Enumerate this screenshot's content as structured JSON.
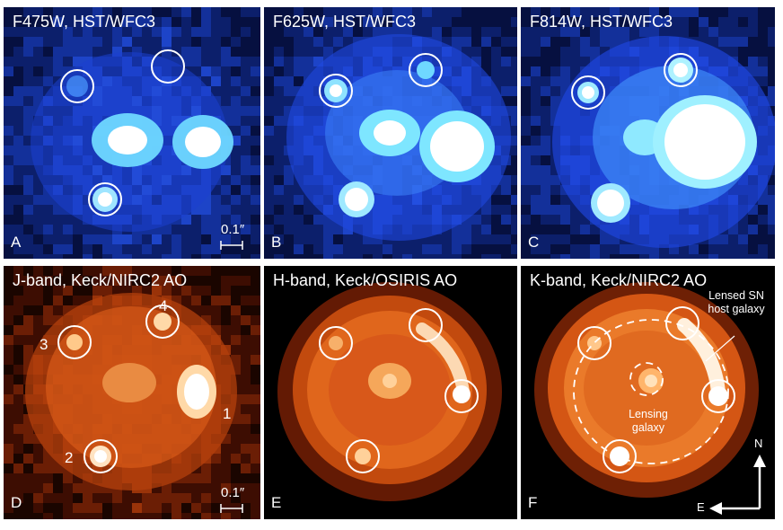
{
  "figure": {
    "panels": [
      {
        "letter": "A",
        "title": "F475W, HST/WFC3",
        "palette": "blue",
        "circles": [
          0,
          1,
          3
        ],
        "scale_label": "0.1″"
      },
      {
        "letter": "B",
        "title": "F625W, HST/WFC3",
        "palette": "blue",
        "circles": [
          0,
          1,
          3
        ]
      },
      {
        "letter": "C",
        "title": "F814W, HST/WFC3",
        "palette": "blue",
        "circles": [
          0,
          1
        ]
      },
      {
        "letter": "D",
        "title": "J-band, Keck/NIRC2 AO",
        "palette": "orange",
        "image_labels": [
          "3",
          "4",
          "1",
          "2"
        ],
        "scale_label": "0.1″"
      },
      {
        "letter": "E",
        "title": "H-band, Keck/OSIRIS AO",
        "palette": "orange"
      },
      {
        "letter": "F",
        "title": "K-band, Keck/NIRC2 AO",
        "palette": "orange",
        "annotations": {
          "host": "Lensed SN\nhost galaxy",
          "lens": "Lensing\ngalaxy",
          "north": "N",
          "east": "E"
        }
      }
    ]
  }
}
